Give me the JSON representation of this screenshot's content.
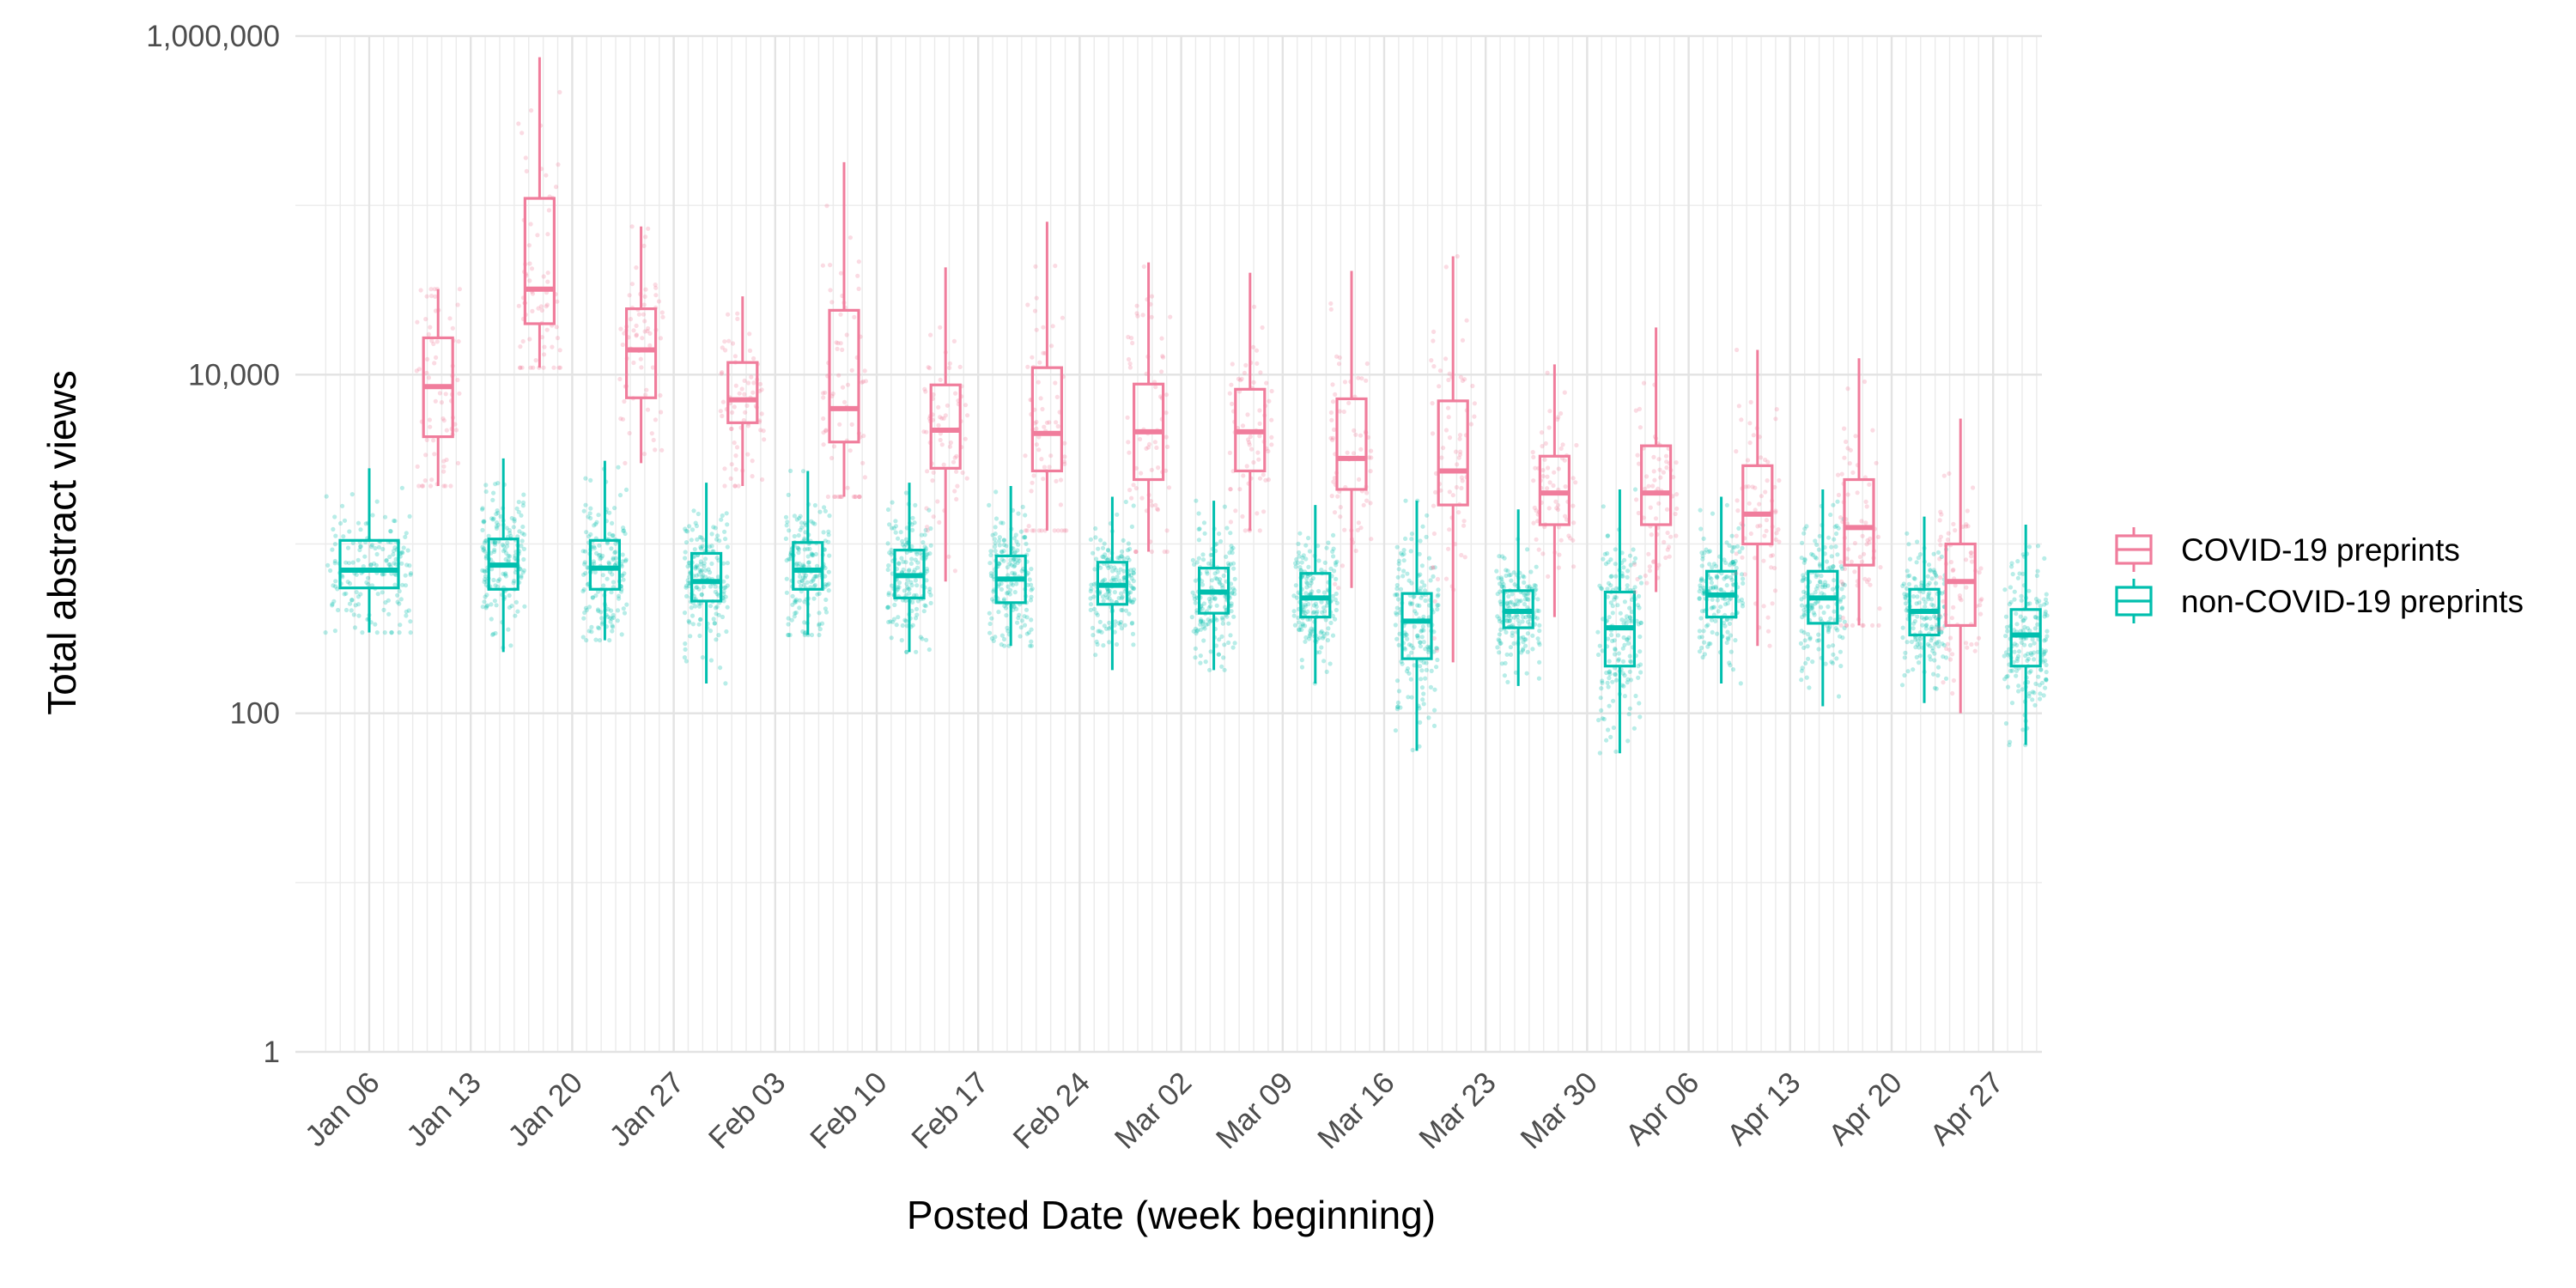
{
  "chart_data": {
    "type": "box",
    "title": "",
    "xlabel": "Posted Date (week beginning)",
    "ylabel": "Total abstract views",
    "y_scale": "log10",
    "ylim": [
      1,
      1000000
    ],
    "y_ticks": [
      1,
      100,
      10000,
      1000000
    ],
    "y_tick_labels": [
      "1",
      "100",
      "10,000",
      "1,000,000"
    ],
    "grid": true,
    "legend_position": "right",
    "categories": [
      "Jan 06",
      "Jan 13",
      "Jan 20",
      "Jan 27",
      "Feb 03",
      "Feb 10",
      "Feb 17",
      "Feb 24",
      "Mar 02",
      "Mar 09",
      "Mar 16",
      "Mar 23",
      "Mar 30",
      "Apr 06",
      "Apr 13",
      "Apr 20",
      "Apr 27"
    ],
    "series": [
      {
        "name": "COVID-19 preprints",
        "color": "#f07d9c",
        "boxes": [
          null,
          {
            "min": 2200,
            "q1": 4300,
            "median": 8500,
            "q3": 16500,
            "max": 32000
          },
          {
            "min": 11000,
            "q1": 20000,
            "median": 32000,
            "q3": 110000,
            "max": 750000
          },
          {
            "min": 3000,
            "q1": 7300,
            "median": 14000,
            "q3": 24500,
            "max": 75000
          },
          {
            "min": 2200,
            "q1": 5200,
            "median": 7100,
            "q3": 11800,
            "max": 29000
          },
          {
            "min": 1900,
            "q1": 4000,
            "median": 6300,
            "q3": 24000,
            "max": 180000
          },
          {
            "min": 600,
            "q1": 2800,
            "median": 4700,
            "q3": 8700,
            "max": 43000
          },
          {
            "min": 1200,
            "q1": 2700,
            "median": 4500,
            "q3": 11000,
            "max": 80000
          },
          {
            "min": 900,
            "q1": 2400,
            "median": 4600,
            "q3": 8800,
            "max": 46000
          },
          {
            "min": 1200,
            "q1": 2700,
            "median": 4600,
            "q3": 8200,
            "max": 40000
          },
          {
            "min": 550,
            "q1": 2100,
            "median": 3200,
            "q3": 7200,
            "max": 41000
          },
          {
            "min": 200,
            "q1": 1700,
            "median": 2700,
            "q3": 7000,
            "max": 50000
          },
          {
            "min": 370,
            "q1": 1300,
            "median": 2000,
            "q3": 3300,
            "max": 11500
          },
          {
            "min": 520,
            "q1": 1300,
            "median": 2000,
            "q3": 3800,
            "max": 19000
          },
          {
            "min": 250,
            "q1": 1000,
            "median": 1500,
            "q3": 2900,
            "max": 14000
          },
          {
            "min": 330,
            "q1": 750,
            "median": 1250,
            "q3": 2400,
            "max": 12500
          },
          {
            "min": 100,
            "q1": 330,
            "median": 600,
            "q3": 1000,
            "max": 5500
          }
        ]
      },
      {
        "name": "non-COVID-19 preprints",
        "color": "#00bfae",
        "boxes": [
          {
            "min": 300,
            "q1": 550,
            "median": 700,
            "q3": 1050,
            "max": 2800
          },
          {
            "min": 230,
            "q1": 540,
            "median": 750,
            "q3": 1070,
            "max": 3200
          },
          {
            "min": 270,
            "q1": 540,
            "median": 720,
            "q3": 1050,
            "max": 3100
          },
          {
            "min": 150,
            "q1": 460,
            "median": 600,
            "q3": 880,
            "max": 2300
          },
          {
            "min": 290,
            "q1": 540,
            "median": 700,
            "q3": 1020,
            "max": 2700
          },
          {
            "min": 230,
            "q1": 480,
            "median": 650,
            "q3": 920,
            "max": 2300
          },
          {
            "min": 250,
            "q1": 450,
            "median": 620,
            "q3": 850,
            "max": 2200
          },
          {
            "min": 180,
            "q1": 440,
            "median": 570,
            "q3": 780,
            "max": 1900
          },
          {
            "min": 180,
            "q1": 390,
            "median": 520,
            "q3": 720,
            "max": 1800
          },
          {
            "min": 150,
            "q1": 370,
            "median": 480,
            "q3": 670,
            "max": 1700
          },
          {
            "min": 60,
            "q1": 210,
            "median": 350,
            "q3": 510,
            "max": 1800
          },
          {
            "min": 145,
            "q1": 320,
            "median": 400,
            "q3": 530,
            "max": 1600
          },
          {
            "min": 58,
            "q1": 190,
            "median": 320,
            "q3": 520,
            "max": 2100
          },
          {
            "min": 150,
            "q1": 370,
            "median": 500,
            "q3": 690,
            "max": 1900
          },
          {
            "min": 110,
            "q1": 340,
            "median": 480,
            "q3": 690,
            "max": 2100
          },
          {
            "min": 115,
            "q1": 290,
            "median": 400,
            "q3": 540,
            "max": 1450
          },
          {
            "min": 65,
            "q1": 190,
            "median": 290,
            "q3": 410,
            "max": 1300
          }
        ]
      }
    ]
  }
}
